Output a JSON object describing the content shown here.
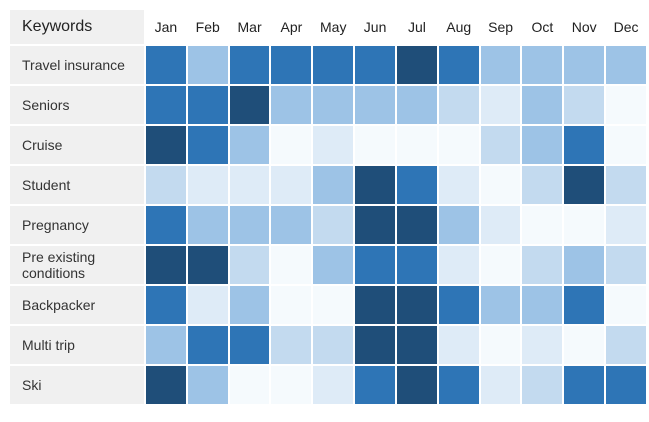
{
  "header": {
    "keywords_label": "Keywords",
    "months": [
      "Jan",
      "Feb",
      "Mar",
      "Apr",
      "May",
      "Jun",
      "Jul",
      "Aug",
      "Sep",
      "Oct",
      "Nov",
      "Dec"
    ]
  },
  "palette": {
    "1": "#F5FAFD",
    "2": "#DEEBF7",
    "3": "#C3DAEF",
    "4": "#9DC3E6",
    "5": "#2E75B6",
    "6": "#1F4E79"
  },
  "colors": {
    "label_column_bg": "#F0F0F0",
    "header_text": "#222222",
    "label_text": "#333333",
    "page_bg": "#FFFFFF"
  },
  "chart_data": {
    "type": "heatmap",
    "x": [
      "Jan",
      "Feb",
      "Mar",
      "Apr",
      "May",
      "Jun",
      "Jul",
      "Aug",
      "Sep",
      "Oct",
      "Nov",
      "Dec"
    ],
    "ylabel": "Keywords",
    "legend": "none",
    "rows": [
      {
        "keyword": "Travel insurance",
        "levels": [
          5,
          4,
          5,
          5,
          5,
          5,
          6,
          5,
          4,
          4,
          4,
          4
        ]
      },
      {
        "keyword": "Seniors",
        "levels": [
          5,
          5,
          6,
          4,
          4,
          4,
          4,
          3,
          2,
          4,
          3,
          1
        ]
      },
      {
        "keyword": "Cruise",
        "levels": [
          6,
          5,
          4,
          1,
          2,
          1,
          1,
          1,
          3,
          4,
          5,
          1
        ]
      },
      {
        "keyword": "Student",
        "levels": [
          3,
          2,
          2,
          2,
          4,
          6,
          5,
          2,
          1,
          3,
          6,
          3
        ]
      },
      {
        "keyword": "Pregnancy",
        "levels": [
          5,
          4,
          4,
          4,
          3,
          6,
          6,
          4,
          2,
          1,
          1,
          2
        ]
      },
      {
        "keyword": "Pre existing conditions",
        "levels": [
          6,
          6,
          3,
          1,
          4,
          5,
          5,
          2,
          1,
          3,
          4,
          3
        ]
      },
      {
        "keyword": "Backpacker",
        "levels": [
          5,
          2,
          4,
          1,
          1,
          6,
          6,
          5,
          4,
          4,
          5,
          1
        ]
      },
      {
        "keyword": "Multi trip",
        "levels": [
          4,
          5,
          5,
          3,
          3,
          6,
          6,
          2,
          1,
          2,
          1,
          3
        ]
      },
      {
        "keyword": "Ski",
        "levels": [
          6,
          4,
          1,
          1,
          2,
          5,
          6,
          5,
          2,
          3,
          5,
          5
        ]
      }
    ]
  }
}
